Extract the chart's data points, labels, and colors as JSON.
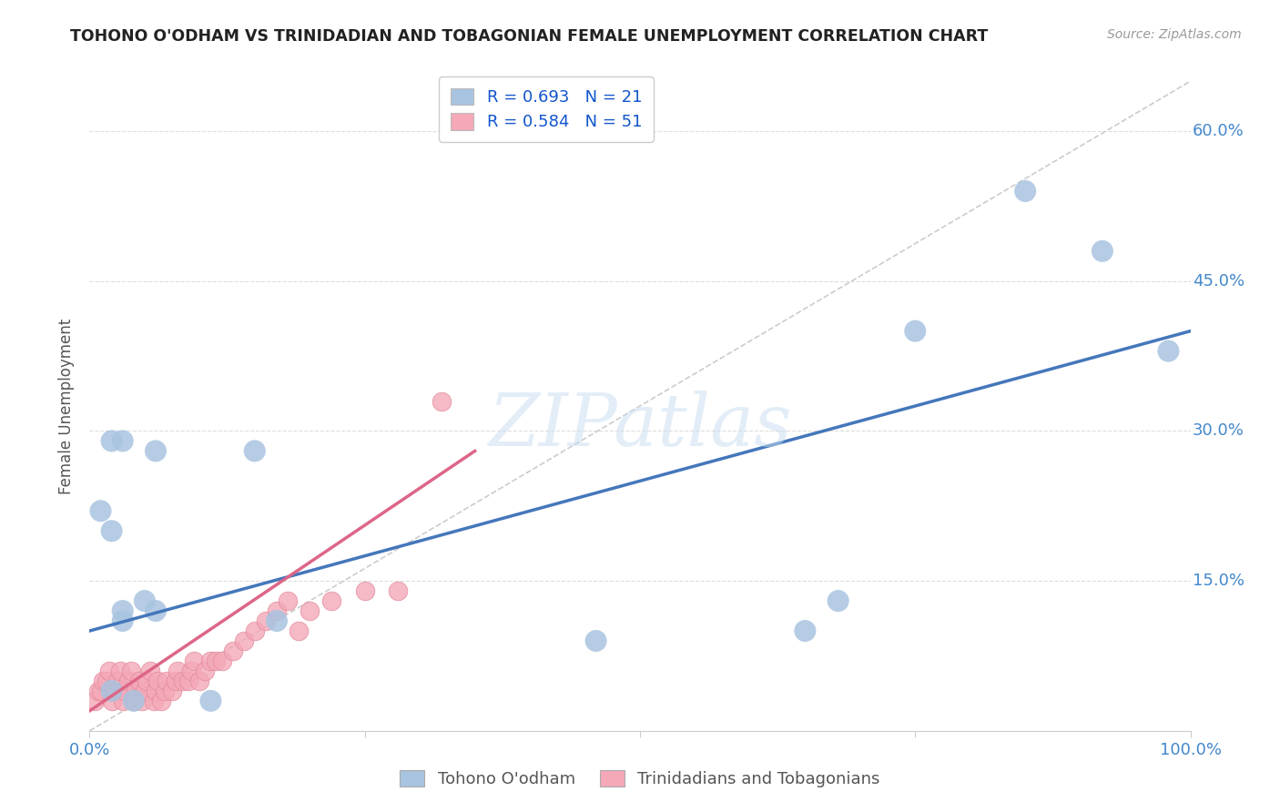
{
  "title": "TOHONO O'ODHAM VS TRINIDADIAN AND TOBAGONIAN FEMALE UNEMPLOYMENT CORRELATION CHART",
  "source": "Source: ZipAtlas.com",
  "ylabel": "Female Unemployment",
  "xlim": [
    0.0,
    1.0
  ],
  "ylim": [
    0.0,
    0.65
  ],
  "x_ticks": [
    0.0,
    0.25,
    0.5,
    0.75,
    1.0
  ],
  "x_tick_labels": [
    "0.0%",
    "",
    "",
    "",
    "100.0%"
  ],
  "y_ticks": [
    0.15,
    0.3,
    0.45,
    0.6
  ],
  "y_tick_labels": [
    "15.0%",
    "30.0%",
    "45.0%",
    "60.0%"
  ],
  "bg_color": "#ffffff",
  "grid_color": "#dddddd",
  "watermark": "ZIPatlas",
  "blue_color": "#a8c4e0",
  "pink_color": "#f4a8b8",
  "pink_edge_color": "#e08898",
  "blue_line_color": "#4477bb",
  "pink_line_color": "#dd6688",
  "diagonal_color": "#cccccc",
  "tohono_x": [
    0.02,
    0.03,
    0.02,
    0.01,
    0.06,
    0.15,
    0.03,
    0.05,
    0.06,
    0.65,
    0.75,
    0.85,
    0.92,
    0.98,
    0.68,
    0.17,
    0.46,
    0.03,
    0.02,
    0.11,
    0.04
  ],
  "tohono_y": [
    0.29,
    0.29,
    0.2,
    0.22,
    0.28,
    0.28,
    0.12,
    0.13,
    0.12,
    0.1,
    0.4,
    0.54,
    0.48,
    0.38,
    0.13,
    0.11,
    0.09,
    0.11,
    0.04,
    0.03,
    0.03
  ],
  "trini_x": [
    0.005,
    0.008,
    0.01,
    0.012,
    0.015,
    0.018,
    0.02,
    0.022,
    0.025,
    0.028,
    0.03,
    0.032,
    0.035,
    0.038,
    0.04,
    0.042,
    0.045,
    0.048,
    0.05,
    0.052,
    0.055,
    0.058,
    0.06,
    0.062,
    0.065,
    0.068,
    0.07,
    0.075,
    0.078,
    0.08,
    0.085,
    0.09,
    0.092,
    0.095,
    0.1,
    0.105,
    0.11,
    0.115,
    0.12,
    0.13,
    0.14,
    0.15,
    0.16,
    0.17,
    0.18,
    0.19,
    0.2,
    0.22,
    0.25,
    0.28,
    0.32
  ],
  "trini_y": [
    0.03,
    0.04,
    0.04,
    0.05,
    0.05,
    0.06,
    0.03,
    0.04,
    0.05,
    0.06,
    0.03,
    0.04,
    0.05,
    0.06,
    0.03,
    0.04,
    0.05,
    0.03,
    0.04,
    0.05,
    0.06,
    0.03,
    0.04,
    0.05,
    0.03,
    0.04,
    0.05,
    0.04,
    0.05,
    0.06,
    0.05,
    0.05,
    0.06,
    0.07,
    0.05,
    0.06,
    0.07,
    0.07,
    0.07,
    0.08,
    0.09,
    0.1,
    0.11,
    0.12,
    0.13,
    0.1,
    0.12,
    0.13,
    0.14,
    0.14,
    0.33
  ],
  "blue_line_x0": 0.0,
  "blue_line_y0": 0.1,
  "blue_line_x1": 1.0,
  "blue_line_y1": 0.4,
  "pink_line_x0": 0.0,
  "pink_line_y0": 0.02,
  "pink_line_x1": 0.35,
  "pink_line_y1": 0.28
}
